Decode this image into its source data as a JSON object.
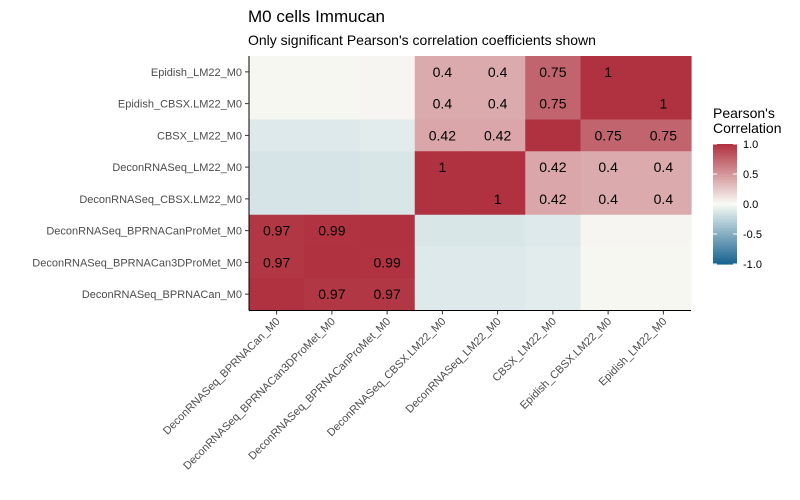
{
  "chart_data": {
    "type": "heatmap",
    "title": "M0 cells Immucan",
    "subtitle": "Only significant Pearson's correlation coefficients shown",
    "x_labels": [
      "DeconRNASeq_BPRNACan_M0",
      "DeconRNASeq_BPRNACan3DProMet_M0",
      "DeconRNASeq_BPRNACanProMet_M0",
      "DeconRNASeq_CBSX.LM22_M0",
      "DeconRNASeq_LM22_M0",
      "CBSX_LM22_M0",
      "Epidish_CBSX.LM22_M0",
      "Epidish_LM22_M0"
    ],
    "y_labels_top_to_bottom": [
      "Epidish_LM22_M0",
      "Epidish_CBSX.LM22_M0",
      "CBSX_LM22_M0",
      "DeconRNASeq_LM22_M0",
      "DeconRNASeq_CBSX.LM22_M0",
      "DeconRNASeq_BPRNACanProMet_M0",
      "DeconRNASeq_BPRNACan3DProMet_M0",
      "DeconRNASeq_BPRNACan_M0"
    ],
    "values": [
      [
        0.02,
        0.02,
        0.03,
        0.4,
        0.4,
        0.75,
        1.0,
        1.0
      ],
      [
        0.02,
        0.02,
        0.03,
        0.4,
        0.4,
        0.75,
        1.0,
        1.0
      ],
      [
        -0.12,
        -0.12,
        -0.1,
        0.42,
        0.42,
        1.0,
        0.75,
        0.75
      ],
      [
        -0.15,
        -0.15,
        -0.14,
        1.0,
        1.0,
        0.42,
        0.4,
        0.4
      ],
      [
        -0.15,
        -0.15,
        -0.14,
        1.0,
        1.0,
        0.42,
        0.4,
        0.4
      ],
      [
        0.97,
        0.99,
        1.0,
        -0.14,
        -0.14,
        -0.12,
        0.03,
        0.03
      ],
      [
        0.97,
        1.0,
        0.99,
        -0.12,
        -0.12,
        -0.1,
        0.02,
        0.02
      ],
      [
        1.0,
        0.97,
        0.97,
        -0.12,
        -0.12,
        -0.1,
        0.02,
        0.02
      ]
    ],
    "labels": [
      [
        "",
        "",
        "",
        "0.4",
        "0.4",
        "0.75",
        "1",
        ""
      ],
      [
        "",
        "",
        "",
        "0.4",
        "0.4",
        "0.75",
        "",
        "1"
      ],
      [
        "",
        "",
        "",
        "0.42",
        "0.42",
        "",
        "0.75",
        "0.75"
      ],
      [
        "",
        "",
        "",
        "1",
        "",
        "0.42",
        "0.4",
        "0.4"
      ],
      [
        "",
        "",
        "",
        "",
        "1",
        "0.42",
        "0.4",
        "0.4"
      ],
      [
        "0.97",
        "0.99",
        "",
        "",
        "",
        "",
        "",
        ""
      ],
      [
        "0.97",
        "",
        "0.99",
        "",
        "",
        "",
        "",
        ""
      ],
      [
        "",
        "0.97",
        "0.97",
        "",
        "",
        "",
        "",
        ""
      ]
    ],
    "legend": {
      "title_lines": [
        "Pearson's",
        "Correlation"
      ],
      "ticks": [
        {
          "value": 1.0,
          "label": "1.0"
        },
        {
          "value": 0.5,
          "label": "0.5"
        },
        {
          "value": 0.0,
          "label": "0.0"
        },
        {
          "value": -0.5,
          "label": "-0.5"
        },
        {
          "value": -1.0,
          "label": "-1.0"
        }
      ],
      "range": [
        -1,
        1
      ],
      "placement": "right"
    },
    "colors": {
      "low": "#17628f",
      "mid": "#f8fbf6",
      "high": "#b0313f"
    }
  }
}
